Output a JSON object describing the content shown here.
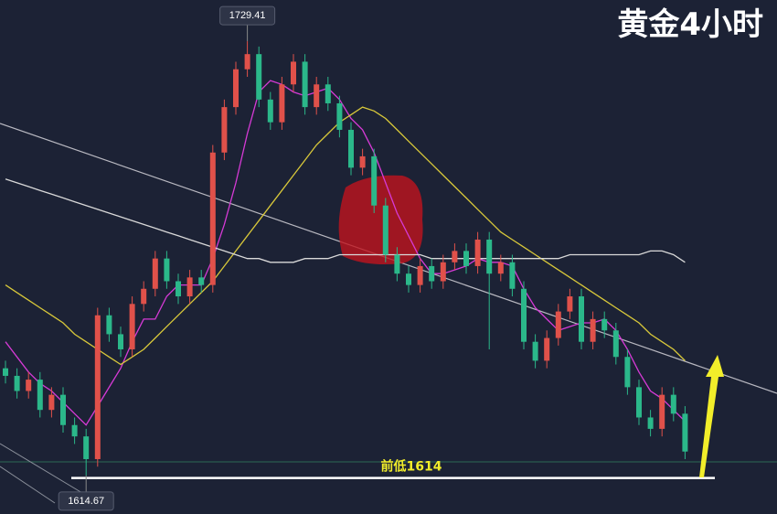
{
  "chart_data": {
    "type": "candlestick",
    "title": "黄金4小时",
    "ylim": [
      1604.5,
      1740.3
    ],
    "up_color": "#e0514a",
    "down_color": "#2bb88a",
    "open": [
      1643,
      1641,
      1637,
      1640,
      1632,
      1636,
      1628,
      1625,
      1619,
      1657,
      1652,
      1648,
      1660,
      1664,
      1672,
      1666,
      1662,
      1667,
      1665,
      1700,
      1712,
      1722,
      1726,
      1714,
      1708,
      1718,
      1724,
      1712,
      1718,
      1713,
      1706,
      1696,
      1699,
      1686,
      1673,
      1668,
      1665,
      1670,
      1666,
      1671,
      1674,
      1670,
      1677,
      1668,
      1671,
      1664,
      1650,
      1645,
      1651,
      1658,
      1662,
      1650,
      1656,
      1653,
      1646,
      1638,
      1630,
      1627,
      1636,
      1631
    ],
    "high": [
      1645,
      1643,
      1642,
      1642,
      1638,
      1638,
      1630,
      1627,
      1659,
      1659,
      1654,
      1662,
      1666,
      1674,
      1674,
      1668,
      1669,
      1669,
      1702,
      1714,
      1724,
      1729.41,
      1728,
      1716,
      1720,
      1726,
      1726,
      1720,
      1720,
      1715,
      1708,
      1701,
      1701,
      1688,
      1675,
      1670,
      1672,
      1672,
      1673,
      1676,
      1676,
      1679,
      1679,
      1673,
      1673,
      1666,
      1652,
      1653,
      1660,
      1664,
      1664,
      1658,
      1658,
      1655,
      1648,
      1640,
      1632,
      1638,
      1638,
      1633
    ],
    "low": [
      1639,
      1635,
      1635,
      1630,
      1630,
      1626,
      1623,
      1614.67,
      1617,
      1650,
      1646,
      1646,
      1658,
      1662,
      1664,
      1660,
      1660,
      1663,
      1663,
      1698,
      1710,
      1720,
      1712,
      1706,
      1706,
      1716,
      1710,
      1710,
      1711,
      1704,
      1694,
      1694,
      1684,
      1671,
      1666,
      1663,
      1663,
      1664,
      1664,
      1669,
      1668,
      1668,
      1648,
      1666,
      1662,
      1648,
      1643,
      1643,
      1649,
      1656,
      1648,
      1648,
      1651,
      1644,
      1636,
      1628,
      1625,
      1625,
      1629,
      1619
    ],
    "close": [
      1641,
      1637,
      1640,
      1632,
      1636,
      1628,
      1625,
      1619,
      1657,
      1652,
      1648,
      1660,
      1664,
      1672,
      1666,
      1662,
      1667,
      1665,
      1700,
      1712,
      1722,
      1726,
      1714,
      1708,
      1718,
      1724,
      1712,
      1718,
      1713,
      1706,
      1696,
      1699,
      1686,
      1673,
      1668,
      1665,
      1670,
      1666,
      1671,
      1674,
      1670,
      1677,
      1668,
      1671,
      1664,
      1650,
      1645,
      1651,
      1658,
      1662,
      1650,
      1656,
      1653,
      1646,
      1638,
      1630,
      1627,
      1636,
      1631,
      1621
    ],
    "series": [
      {
        "color": "#d63ad6",
        "values": [
          1650,
          1646,
          1642,
          1639,
          1637,
          1634,
          1631,
          1628,
          1633,
          1638,
          1643,
          1650,
          1656,
          1656,
          1662,
          1665,
          1665,
          1665,
          1672,
          1681,
          1692,
          1705,
          1716,
          1719,
          1718,
          1716,
          1715,
          1716,
          1717,
          1714,
          1709,
          1706,
          1700,
          1692,
          1684,
          1678,
          1672,
          1668,
          1668,
          1669,
          1670,
          1672,
          1671,
          1671,
          1670,
          1664,
          1659,
          1656,
          1653,
          1654,
          1655,
          1655,
          1656,
          1653,
          1648,
          1642,
          1637,
          1635,
          1632,
          1629
        ]
      },
      {
        "color": "#d8c83a",
        "values": [
          1665,
          1663,
          1661,
          1659,
          1657,
          1655,
          1652,
          1650,
          1648,
          1646,
          1644,
          1646,
          1648,
          1651,
          1654,
          1657,
          1660,
          1663,
          1666,
          1670,
          1674,
          1678,
          1682,
          1686,
          1690,
          1694,
          1698,
          1702,
          1705,
          1708,
          1710,
          1712,
          1711,
          1709,
          1706,
          1703,
          1700,
          1697,
          1694,
          1691,
          1688,
          1685,
          1682,
          1679,
          1677,
          1675,
          1673,
          1671,
          1669,
          1667,
          1665,
          1663,
          1661,
          1659,
          1657,
          1655,
          1652,
          1650,
          1648,
          1645
        ]
      },
      {
        "color": "#d9d9d9",
        "values": [
          1693,
          1692,
          1691,
          1690,
          1689,
          1688,
          1687,
          1686,
          1685,
          1684,
          1683,
          1682,
          1681,
          1680,
          1679,
          1678,
          1677,
          1676,
          1675,
          1674,
          1673,
          1672,
          1672,
          1671,
          1671,
          1671,
          1672,
          1672,
          1672,
          1673,
          1673,
          1673,
          1673,
          1673,
          1673,
          1673,
          1673,
          1672,
          1672,
          1672,
          1672,
          1672,
          1672,
          1672,
          1672,
          1672,
          1672,
          1672,
          1672,
          1673,
          1673,
          1673,
          1673,
          1673,
          1673,
          1673,
          1674,
          1674,
          1673,
          1671
        ]
      }
    ],
    "high_label": 1729.41,
    "low_label": 1614.67,
    "support": {
      "value": 1614,
      "label": "前低1614"
    }
  }
}
